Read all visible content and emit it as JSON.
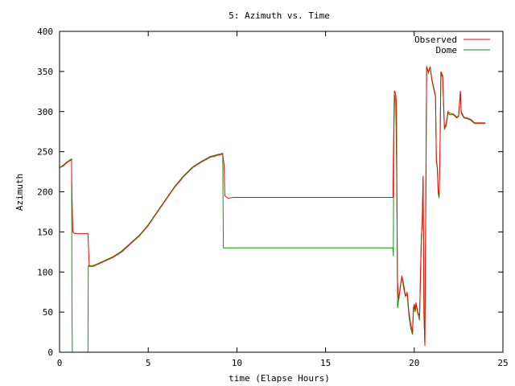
{
  "chart_data": {
    "type": "line",
    "title": "5: Azimuth vs. Time",
    "xlabel": "time (Elapse Hours)",
    "ylabel": "Azimuth",
    "xlim": [
      0,
      25
    ],
    "ylim": [
      0,
      400
    ],
    "xticks": [
      "0",
      "5",
      "10",
      "15",
      "20",
      "25"
    ],
    "yticks": [
      "0",
      "50",
      "100",
      "150",
      "200",
      "250",
      "300",
      "350",
      "400"
    ],
    "grid": false,
    "legend": "top-right",
    "series": [
      {
        "name": "Observed",
        "color": "#ff0000",
        "points": [
          [
            0,
            230
          ],
          [
            0.2,
            232
          ],
          [
            0.4,
            236
          ],
          [
            0.6,
            239
          ],
          [
            0.68,
            240
          ],
          [
            0.68,
            218
          ],
          [
            0.72,
            175
          ],
          [
            0.75,
            150
          ],
          [
            0.85,
            148
          ],
          [
            1.2,
            148
          ],
          [
            1.6,
            148
          ],
          [
            1.6,
            147
          ],
          [
            1.68,
            107
          ],
          [
            1.9,
            107
          ],
          [
            2.2,
            110
          ],
          [
            2.5,
            113
          ],
          [
            3.0,
            118
          ],
          [
            3.5,
            125
          ],
          [
            4.0,
            135
          ],
          [
            4.5,
            145
          ],
          [
            5.0,
            158
          ],
          [
            5.5,
            174
          ],
          [
            6.0,
            190
          ],
          [
            6.5,
            206
          ],
          [
            7.0,
            219
          ],
          [
            7.5,
            230
          ],
          [
            8.0,
            237
          ],
          [
            8.5,
            243
          ],
          [
            9.0,
            246
          ],
          [
            9.2,
            247
          ],
          [
            9.28,
            233
          ],
          [
            9.32,
            195
          ],
          [
            9.5,
            192
          ],
          [
            9.8,
            193
          ],
          [
            12,
            193
          ],
          [
            15,
            193
          ],
          [
            18.8,
            193
          ],
          [
            18.82,
            240
          ],
          [
            18.88,
            326
          ],
          [
            18.95,
            322
          ],
          [
            19.0,
            310
          ],
          [
            19.02,
            200
          ],
          [
            19.05,
            90
          ],
          [
            19.12,
            65
          ],
          [
            19.2,
            80
          ],
          [
            19.3,
            95
          ],
          [
            19.4,
            85
          ],
          [
            19.5,
            70
          ],
          [
            19.6,
            75
          ],
          [
            19.7,
            50
          ],
          [
            19.8,
            35
          ],
          [
            19.9,
            25
          ],
          [
            19.95,
            55
          ],
          [
            20.0,
            60
          ],
          [
            20.05,
            52
          ],
          [
            20.1,
            62
          ],
          [
            20.2,
            50
          ],
          [
            20.3,
            45
          ],
          [
            20.4,
            145
          ],
          [
            20.45,
            160
          ],
          [
            20.5,
            220
          ],
          [
            20.55,
            50
          ],
          [
            20.6,
            8
          ],
          [
            20.65,
            185
          ],
          [
            20.7,
            355
          ],
          [
            20.8,
            350
          ],
          [
            20.9,
            355
          ],
          [
            21.0,
            340
          ],
          [
            21.1,
            330
          ],
          [
            21.2,
            320
          ],
          [
            21.25,
            240
          ],
          [
            21.3,
            230
          ],
          [
            21.35,
            200
          ],
          [
            21.4,
            195
          ],
          [
            21.45,
            250
          ],
          [
            21.5,
            350
          ],
          [
            21.6,
            345
          ],
          [
            21.7,
            280
          ],
          [
            21.8,
            285
          ],
          [
            21.9,
            300
          ],
          [
            22.0,
            298
          ],
          [
            22.2,
            297
          ],
          [
            22.4,
            293
          ],
          [
            22.5,
            295
          ],
          [
            22.55,
            310
          ],
          [
            22.6,
            325
          ],
          [
            22.65,
            300
          ],
          [
            22.8,
            293
          ],
          [
            23.0,
            292
          ],
          [
            23.2,
            290
          ],
          [
            23.4,
            286
          ],
          [
            24.0,
            286
          ]
        ]
      },
      {
        "name": "Dome",
        "color": "#00a000",
        "points": [
          [
            0,
            230
          ],
          [
            0.2,
            233
          ],
          [
            0.4,
            237
          ],
          [
            0.6,
            240
          ],
          [
            0.68,
            241
          ],
          [
            0.7,
            60
          ],
          [
            0.72,
            0
          ],
          [
            1.0,
            0
          ],
          [
            1.3,
            0
          ],
          [
            1.58,
            0
          ],
          [
            1.6,
            0
          ],
          [
            1.62,
            108
          ],
          [
            1.9,
            108
          ],
          [
            2.2,
            111
          ],
          [
            2.5,
            114
          ],
          [
            3.0,
            119
          ],
          [
            3.5,
            126
          ],
          [
            4.0,
            136
          ],
          [
            4.5,
            146
          ],
          [
            5.0,
            159
          ],
          [
            5.5,
            175
          ],
          [
            6.0,
            191
          ],
          [
            6.5,
            207
          ],
          [
            7.0,
            220
          ],
          [
            7.5,
            231
          ],
          [
            8.0,
            238
          ],
          [
            8.5,
            244
          ],
          [
            9.0,
            247
          ],
          [
            9.2,
            248
          ],
          [
            9.24,
            130
          ],
          [
            12,
            130
          ],
          [
            15,
            130
          ],
          [
            18.8,
            130
          ],
          [
            18.82,
            120
          ],
          [
            18.85,
            280
          ],
          [
            18.9,
            320
          ],
          [
            18.95,
            320
          ],
          [
            19.02,
            200
          ],
          [
            19.06,
            55
          ],
          [
            19.12,
            65
          ],
          [
            19.2,
            78
          ],
          [
            19.3,
            95
          ],
          [
            19.4,
            80
          ],
          [
            19.5,
            70
          ],
          [
            19.6,
            72
          ],
          [
            19.7,
            45
          ],
          [
            19.8,
            30
          ],
          [
            19.9,
            22
          ],
          [
            19.95,
            50
          ],
          [
            20.0,
            58
          ],
          [
            20.05,
            50
          ],
          [
            20.1,
            60
          ],
          [
            20.2,
            48
          ],
          [
            20.3,
            40
          ],
          [
            20.4,
            140
          ],
          [
            20.45,
            165
          ],
          [
            20.5,
            218
          ],
          [
            20.55,
            45
          ],
          [
            20.6,
            10
          ],
          [
            20.65,
            180
          ],
          [
            20.7,
            357
          ],
          [
            20.8,
            348
          ],
          [
            20.9,
            356
          ],
          [
            21.0,
            338
          ],
          [
            21.1,
            328
          ],
          [
            21.2,
            318
          ],
          [
            21.25,
            238
          ],
          [
            21.3,
            228
          ],
          [
            21.35,
            198
          ],
          [
            21.4,
            192
          ],
          [
            21.45,
            248
          ],
          [
            21.5,
            348
          ],
          [
            21.6,
            342
          ],
          [
            21.7,
            278
          ],
          [
            21.8,
            282
          ],
          [
            21.9,
            298
          ],
          [
            22.0,
            296
          ],
          [
            22.2,
            296
          ],
          [
            22.4,
            292
          ],
          [
            22.5,
            294
          ],
          [
            22.55,
            308
          ],
          [
            22.6,
            326
          ],
          [
            22.65,
            298
          ],
          [
            22.8,
            292
          ],
          [
            23.0,
            291
          ],
          [
            23.2,
            289
          ],
          [
            23.4,
            285
          ],
          [
            24.0,
            285
          ]
        ]
      }
    ]
  }
}
